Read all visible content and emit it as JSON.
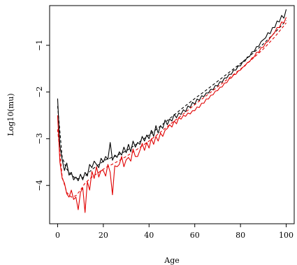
{
  "chart_data": {
    "type": "line",
    "title": "",
    "xlabel": "Age",
    "ylabel": "Log10(mu)",
    "xlim": [
      -3.5,
      103.5
    ],
    "ylim": [
      -4.82,
      -0.15
    ],
    "x_ticks": [
      0,
      20,
      40,
      60,
      80,
      100
    ],
    "y_ticks": [
      -4,
      -3,
      -2,
      -1
    ],
    "x_tick_labels": [
      "0",
      "20",
      "40",
      "60",
      "80",
      "100"
    ],
    "y_tick_labels": [
      "−4",
      "−3",
      "−2",
      "−1"
    ],
    "grid": false,
    "legend": "none",
    "series": [
      {
        "color": "#000000",
        "dash": "solid",
        "x": [
          0,
          1,
          2,
          3,
          4,
          5,
          6,
          7,
          8,
          9,
          10,
          11,
          12,
          13,
          14,
          15,
          16,
          17,
          18,
          19,
          20,
          21,
          22,
          23,
          24,
          25,
          26,
          27,
          28,
          29,
          30,
          31,
          32,
          33,
          34,
          35,
          36,
          37,
          38,
          39,
          40,
          41,
          42,
          43,
          44,
          45,
          46,
          47,
          48,
          49,
          50,
          51,
          52,
          53,
          54,
          55,
          56,
          57,
          58,
          59,
          60,
          61,
          62,
          63,
          64,
          65,
          66,
          67,
          68,
          69,
          70,
          71,
          72,
          73,
          74,
          75,
          76,
          77,
          78,
          79,
          80,
          81,
          82,
          83,
          84,
          85,
          86,
          87,
          88,
          89,
          90,
          91,
          92,
          93,
          94,
          95,
          96,
          97,
          98,
          99,
          100
        ],
        "values": [
          -2.14,
          -3.15,
          -3.45,
          -3.68,
          -3.52,
          -3.78,
          -3.72,
          -3.88,
          -3.82,
          -3.9,
          -3.76,
          -3.88,
          -3.72,
          -3.8,
          -3.55,
          -3.62,
          -3.48,
          -3.55,
          -3.62,
          -3.42,
          -3.5,
          -3.38,
          -3.44,
          -3.08,
          -3.46,
          -3.35,
          -3.4,
          -3.28,
          -3.35,
          -3.18,
          -3.3,
          -3.12,
          -3.28,
          -3.05,
          -3.18,
          -3.08,
          -3.12,
          -2.95,
          -3.05,
          -2.92,
          -3,
          -2.82,
          -2.95,
          -2.72,
          -2.88,
          -2.72,
          -2.78,
          -2.6,
          -2.7,
          -2.58,
          -2.62,
          -2.48,
          -2.55,
          -2.45,
          -2.48,
          -2.38,
          -2.42,
          -2.3,
          -2.33,
          -2.22,
          -2.26,
          -2.15,
          -2.18,
          -2.08,
          -2.1,
          -2.02,
          -2.02,
          -1.94,
          -1.95,
          -1.86,
          -1.87,
          -1.78,
          -1.79,
          -1.7,
          -1.7,
          -1.62,
          -1.62,
          -1.53,
          -1.53,
          -1.44,
          -1.44,
          -1.35,
          -1.34,
          -1.25,
          -1.24,
          -1.14,
          -1.13,
          -1.03,
          -1.02,
          -0.92,
          -0.88,
          -0.84,
          -0.73,
          -0.75,
          -0.62,
          -0.62,
          -0.48,
          -0.5,
          -0.36,
          -0.42,
          -0.23
        ]
      },
      {
        "color": "#000000",
        "dash": "dashed",
        "x": [
          0,
          2,
          4,
          6,
          8,
          10,
          12,
          15,
          18,
          21,
          25,
          30,
          35,
          40,
          45,
          50,
          55,
          60,
          65,
          70,
          75,
          80,
          85,
          90,
          95,
          100
        ],
        "values": [
          -2.3,
          -3.4,
          -3.65,
          -3.78,
          -3.85,
          -3.86,
          -3.8,
          -3.66,
          -3.55,
          -3.45,
          -3.38,
          -3.26,
          -3.1,
          -2.92,
          -2.73,
          -2.53,
          -2.33,
          -2.14,
          -1.96,
          -1.77,
          -1.58,
          -1.39,
          -1.19,
          -0.97,
          -0.73,
          -0.47
        ]
      },
      {
        "color": "#e00000",
        "dash": "solid",
        "x": [
          0,
          1,
          2,
          3,
          4,
          5,
          6,
          7,
          8,
          9,
          10,
          11,
          12,
          13,
          14,
          15,
          16,
          17,
          18,
          19,
          20,
          21,
          22,
          23,
          24,
          25,
          26,
          27,
          28,
          29,
          30,
          31,
          32,
          33,
          34,
          35,
          36,
          37,
          38,
          39,
          40,
          41,
          42,
          43,
          44,
          45,
          46,
          47,
          48,
          49,
          50,
          51,
          52,
          53,
          54,
          55,
          56,
          57,
          58,
          59,
          60,
          61,
          62,
          63,
          64,
          65,
          66,
          67,
          68,
          69,
          70,
          71,
          72,
          73,
          74,
          75,
          76,
          77,
          78,
          79,
          80,
          81,
          82,
          83,
          84,
          85,
          86,
          87,
          88,
          89,
          90,
          91,
          92,
          93,
          94,
          95,
          96,
          97,
          98,
          99,
          100
        ],
        "values": [
          -2.5,
          -3.5,
          -3.85,
          -3.95,
          -4.18,
          -4.25,
          -4.1,
          -4.3,
          -4.25,
          -4.52,
          -4.15,
          -4.05,
          -4.58,
          -3.92,
          -4.1,
          -3.7,
          -3.85,
          -3.6,
          -3.82,
          -3.68,
          -3.68,
          -3.8,
          -3.55,
          -3.72,
          -4.2,
          -3.58,
          -3.6,
          -3.55,
          -3.38,
          -3.6,
          -3.45,
          -3.4,
          -3.48,
          -3.22,
          -3.38,
          -3.38,
          -3.25,
          -3.1,
          -3.25,
          -3.08,
          -3.2,
          -3,
          -3.12,
          -2.95,
          -3.05,
          -2.88,
          -2.95,
          -2.82,
          -2.78,
          -2.7,
          -2.75,
          -2.62,
          -2.68,
          -2.55,
          -2.58,
          -2.5,
          -2.52,
          -2.45,
          -2.47,
          -2.4,
          -2.4,
          -2.32,
          -2.33,
          -2.24,
          -2.24,
          -2.15,
          -2.15,
          -2.07,
          -2.06,
          -1.98,
          -1.97,
          -1.9,
          -1.89,
          -1.81,
          -1.8,
          -1.72,
          -1.7,
          -1.63,
          -1.62,
          -1.55,
          -1.53,
          -1.47,
          -1.44,
          -1.37,
          -1.35,
          -1.27,
          -1.25,
          -1.15,
          -1.15,
          -1.05,
          -1.04,
          -0.95,
          -0.92,
          -0.84,
          -0.78,
          -0.72,
          -0.62,
          -0.62,
          -0.5,
          -0.52,
          -0.4
        ]
      },
      {
        "color": "#e00000",
        "dash": "dashed",
        "x": [
          0,
          2,
          4,
          6,
          8,
          10,
          12,
          15,
          18,
          21,
          25,
          30,
          35,
          40,
          45,
          50,
          55,
          60,
          65,
          70,
          75,
          80,
          85,
          90,
          95,
          100
        ],
        "values": [
          -2.8,
          -3.82,
          -4.15,
          -4.25,
          -4.22,
          -4.1,
          -3.95,
          -3.82,
          -3.72,
          -3.62,
          -3.52,
          -3.38,
          -3.22,
          -3.05,
          -2.86,
          -2.66,
          -2.47,
          -2.27,
          -2.08,
          -1.89,
          -1.7,
          -1.51,
          -1.3,
          -1.08,
          -0.82,
          -0.52
        ]
      }
    ]
  }
}
